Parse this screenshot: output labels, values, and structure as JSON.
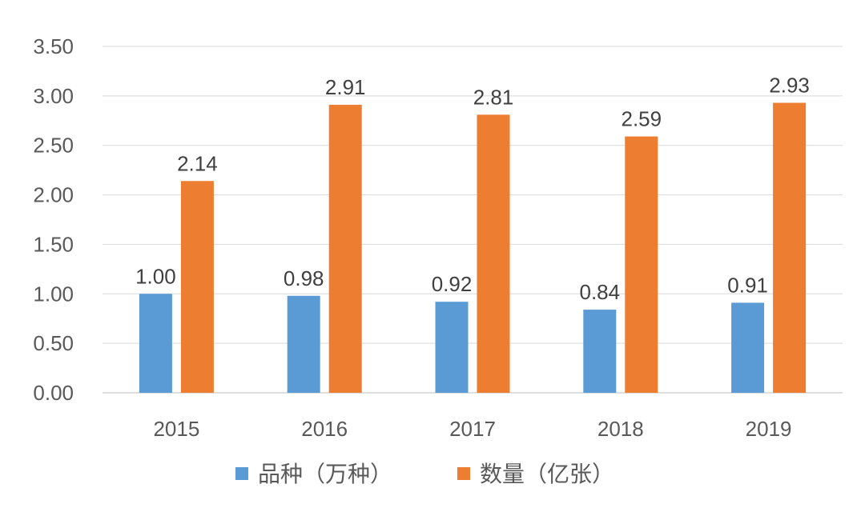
{
  "chart_data": {
    "type": "bar",
    "title": "",
    "xlabel": "",
    "ylabel": "",
    "categories": [
      "2015",
      "2016",
      "2017",
      "2018",
      "2019"
    ],
    "series": [
      {
        "name": "品种（万种）",
        "color": "#5B9BD5",
        "values": [
          1.0,
          0.98,
          0.92,
          0.84,
          0.91
        ],
        "labels": [
          "1.00",
          "0.98",
          "0.92",
          "0.84",
          "0.91"
        ]
      },
      {
        "name": "数量（亿张）",
        "color": "#ED7D31",
        "values": [
          2.14,
          2.91,
          2.81,
          2.59,
          2.93
        ],
        "labels": [
          "2.14",
          "2.91",
          "2.81",
          "2.59",
          "2.93"
        ]
      }
    ],
    "ylim": [
      0,
      3.5
    ],
    "yticks": [
      "0.00",
      "0.50",
      "1.00",
      "1.50",
      "2.00",
      "2.50",
      "3.00",
      "3.50"
    ],
    "grid": true,
    "legend_position": "bottom"
  }
}
